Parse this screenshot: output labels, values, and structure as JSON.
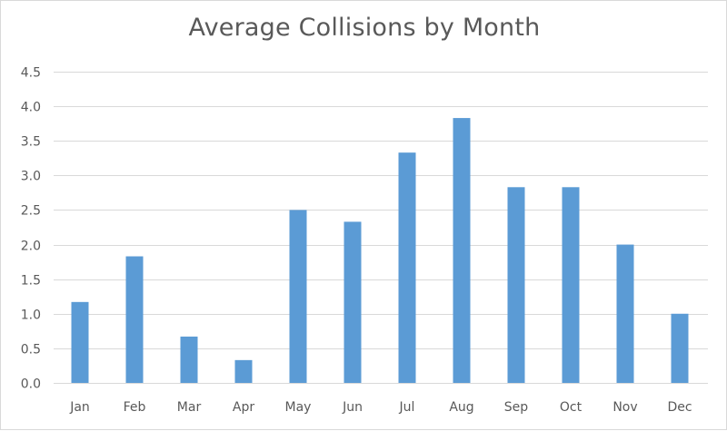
{
  "chart_data": {
    "type": "bar",
    "title": "Average Collisions by Month",
    "categories": [
      "Jan",
      "Feb",
      "Mar",
      "Apr",
      "May",
      "Jun",
      "Jul",
      "Aug",
      "Sep",
      "Oct",
      "Nov",
      "Dec"
    ],
    "values": [
      1.17,
      1.83,
      0.67,
      0.33,
      2.5,
      2.33,
      3.33,
      3.83,
      2.83,
      2.83,
      2.0,
      1.0
    ],
    "yticks": [
      "0.0",
      "0.5",
      "1.0",
      "1.5",
      "2.0",
      "2.5",
      "3.0",
      "3.5",
      "4.0",
      "4.5"
    ],
    "ylim": [
      0,
      4.5
    ],
    "xlabel": "",
    "ylabel": "",
    "grid": true,
    "legend": "none",
    "colors": {
      "bar": "#5b9bd5",
      "grid": "#d9d9d9",
      "text": "#595959"
    }
  }
}
